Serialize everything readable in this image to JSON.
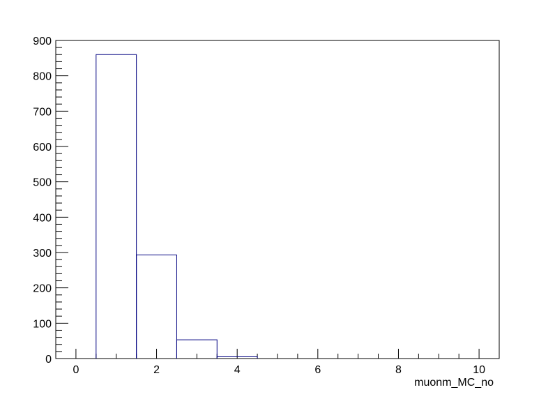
{
  "chart_data": {
    "type": "bar",
    "subtype": "step-histogram",
    "title": "",
    "xlabel": "muonm_MC_no",
    "ylabel": "",
    "xlim": [
      -0.5,
      10.5
    ],
    "ylim": [
      0,
      900
    ],
    "x_ticks": [
      0,
      2,
      4,
      6,
      8,
      10
    ],
    "y_ticks": [
      0,
      100,
      200,
      300,
      400,
      500,
      600,
      700,
      800,
      900
    ],
    "bin_width": 1,
    "bins": [
      {
        "x_low": 0.5,
        "x_high": 1.5,
        "value": 860
      },
      {
        "x_low": 1.5,
        "x_high": 2.5,
        "value": 293
      },
      {
        "x_low": 2.5,
        "x_high": 3.5,
        "value": 53
      },
      {
        "x_low": 3.5,
        "x_high": 4.5,
        "value": 5
      }
    ],
    "grid": false,
    "legend": "none",
    "line_color": "#000080"
  }
}
